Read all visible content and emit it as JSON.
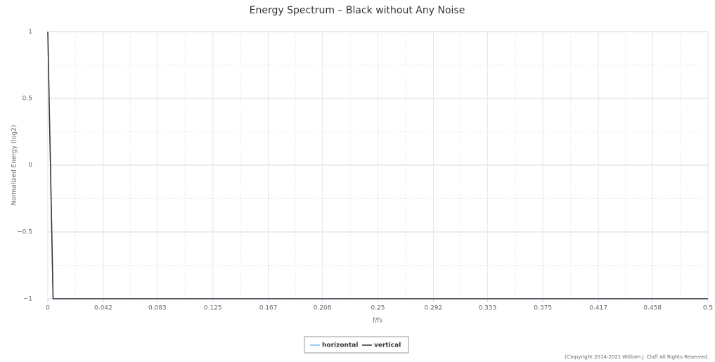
{
  "chart_data": {
    "type": "line",
    "title": "Energy Spectrum – Black without Any Noise",
    "x_label": "f/fs",
    "y_label": "Normalized Energy (log2)",
    "x": [
      0,
      0.004,
      0.5
    ],
    "series": [
      {
        "name": "horizontal",
        "color": "#7cb5ec",
        "values": [
          1,
          -1,
          -1
        ]
      },
      {
        "name": "vertical",
        "color": "#333333",
        "values": [
          1,
          -1,
          -1
        ]
      }
    ],
    "xlim": [
      0,
      0.5
    ],
    "xticks": [
      0,
      0.042,
      0.083,
      0.125,
      0.167,
      0.208,
      0.25,
      0.292,
      0.333,
      0.375,
      0.417,
      0.458,
      0.5
    ],
    "ylim": [
      -1,
      1
    ],
    "yticks": [
      {
        "value": -1,
        "label": "−1"
      },
      {
        "value": -0.5,
        "label": "−0.5"
      },
      0,
      0.5,
      1
    ],
    "grid": true,
    "legend": "bottom",
    "credits": "(C)opyright 2014-2021 William J. Claff All Rights Reserved."
  }
}
